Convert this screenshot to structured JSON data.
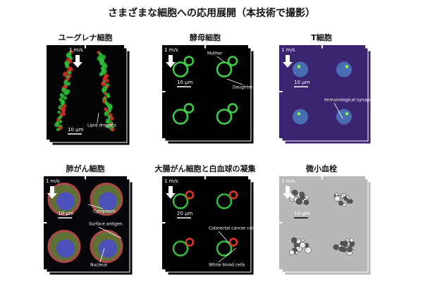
{
  "title": "さまざまな細胞への応用展開（本技術で撮影）",
  "panels": [
    {
      "title": "ユーグレナ細胞",
      "speed": "1 m/s",
      "scale": "10 μm",
      "annotations": [
        "Lipid droplets"
      ]
    },
    {
      "title": "酵母細胞",
      "speed": "1 m/s",
      "scale": "10 μm",
      "annotations": [
        "Mother",
        "Daughter"
      ]
    },
    {
      "title": "T細胞",
      "speed": "1 m/s",
      "scale": "10 μm",
      "annotations": [
        "Immunological synapse"
      ]
    },
    {
      "title": "肺がん細胞",
      "speed": "1 m/s",
      "scale": "10 μm",
      "annotations": [
        "Cytoplasm",
        "Surface antigen",
        "Nucleus"
      ]
    },
    {
      "title": "大腸がん細胞と白血球の凝集",
      "speed": "1 m/s",
      "scale": "20 μm",
      "annotations": [
        "Colorectal cancer cell",
        "White blood cells"
      ]
    },
    {
      "title": "微小血栓",
      "speed": "1 m/s",
      "scale": "10 μm",
      "annotations": []
    }
  ]
}
